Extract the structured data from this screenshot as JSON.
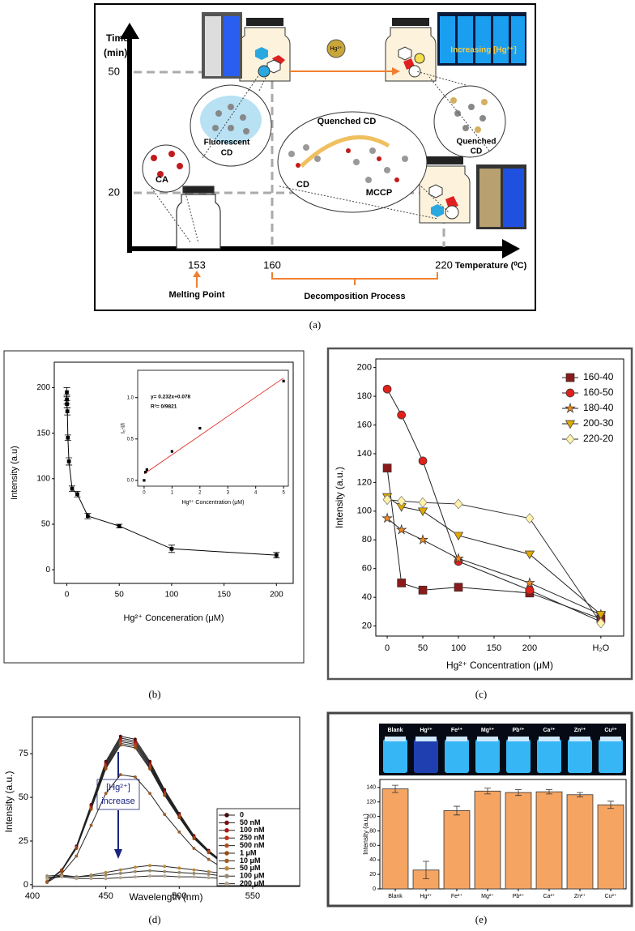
{
  "diagram": {
    "y_axis_title": [
      "Time",
      "(min)"
    ],
    "y_ticks": [
      50,
      20
    ],
    "x_ticks": [
      153,
      160,
      220
    ],
    "x_axis_title": "Temperature (⁰C)",
    "melting_point": "Melting Point",
    "decomposition": "Decomposition Process",
    "ca": "CA",
    "fluorescent_cd": [
      "Fluorescent",
      "CD"
    ],
    "quenched_cd_center": "Quenched CD",
    "cd": "CD",
    "mccp": "MCCP",
    "quenched_cd_right": [
      "Quenched",
      "CD"
    ],
    "hg": "Hg²⁺",
    "increasing": "Increasing [Hg²⁺]"
  },
  "panel_labels": [
    "(a)",
    "(b)",
    "(c)",
    "(d)",
    "(e)"
  ],
  "chart_data": [
    {
      "type": "line",
      "x_label": "Hg²⁺ Conceneration (μM)",
      "y_label": "Intensity (a.u)",
      "x": [
        0,
        0.05,
        0.1,
        0.5,
        1,
        2,
        5,
        10,
        20,
        50,
        100,
        200
      ],
      "values": [
        195,
        187,
        182,
        174,
        145,
        119,
        89,
        83,
        59,
        48,
        23,
        16
      ],
      "errors": [
        5,
        5,
        4,
        4,
        3,
        4,
        3,
        3,
        3,
        2,
        4,
        3
      ],
      "color": "#000000",
      "xlim": [
        -12,
        216
      ],
      "ylim": [
        -15,
        228
      ],
      "xticks": [
        0,
        50,
        100,
        150,
        200
      ],
      "yticks": [
        0,
        50,
        100,
        150,
        200
      ]
    },
    {
      "type": "scatter",
      "x_label": "Hg²⁺ Concentration (μM)",
      "y_label": "I₀-I/I",
      "x": [
        0,
        0.05,
        0.1,
        1,
        2,
        5
      ],
      "values": [
        0,
        0.1,
        0.13,
        0.35,
        0.63,
        1.2
      ],
      "color": "#000000",
      "fit": {
        "x": [
          0,
          5
        ],
        "values": [
          0.078,
          1.238
        ],
        "color": "#e0201b"
      },
      "annotations": [
        "y= 0.232x+0.078",
        "R²= 0/9821"
      ],
      "xlim": [
        -0.23,
        5.17
      ],
      "ylim": [
        -0.07,
        1.33
      ],
      "xticks": [
        0,
        1,
        2,
        3,
        4,
        5
      ],
      "yticks": [
        {
          "value": 0,
          "label": "0.0"
        },
        {
          "value": 0.5,
          "label": "0.5"
        },
        {
          "value": 1,
          "label": "1.0"
        }
      ]
    },
    {
      "type": "line",
      "x_label": "Hg²⁺ Concentration (μM)",
      "y_label": "Intensity (a.u.)",
      "x": [
        0,
        20,
        50,
        100,
        200,
        300
      ],
      "series": [
        {
          "name": "160-40",
          "color": "#8b1a1a",
          "marker": "square",
          "values": [
            130,
            50,
            45,
            47,
            43,
            25
          ]
        },
        {
          "name": "160-50",
          "color": "#e0201b",
          "marker": "circle",
          "values": [
            185,
            167,
            135,
            65,
            45,
            23
          ]
        },
        {
          "name": "180-40",
          "color": "#f28a1e",
          "marker": "star",
          "values": [
            95,
            87,
            80,
            67,
            50,
            28
          ]
        },
        {
          "name": "200-30",
          "color": "#e0a800",
          "marker": "triangle-down",
          "values": [
            110,
            103,
            100,
            83,
            70,
            28
          ]
        },
        {
          "name": "220-20",
          "color": "#fff3a8",
          "marker": "diamond",
          "values": [
            108,
            107,
            106,
            105,
            95,
            22
          ]
        }
      ],
      "legend": "top-right",
      "xlim": [
        -16,
        332
      ],
      "ylim": [
        13,
        206
      ],
      "xticks": [
        0,
        50,
        100,
        150,
        200,
        {
          "value": 300,
          "label": "H₂O"
        }
      ],
      "yticks": [
        20,
        40,
        60,
        80,
        100,
        120,
        140,
        160,
        180,
        200
      ]
    },
    {
      "type": "line",
      "x_label": "Wavelength (nm)",
      "y_label": "Intensity (a.u.)",
      "x": [
        410,
        420,
        430,
        440,
        450,
        460,
        470,
        480,
        490,
        500,
        510,
        520,
        530,
        540,
        550,
        560,
        570,
        580
      ],
      "series": [
        {
          "name": "0",
          "color": "#4a0808",
          "values": [
            1.7,
            8.5,
            22.1,
            45.9,
            70.6,
            85,
            83.3,
            70.6,
            54.4,
            40.8,
            28.1,
            19.6,
            12.8,
            9.4,
            6,
            4.3,
            3,
            2.1
          ]
        },
        {
          "name": "50 nM",
          "color": "#7a0e0e",
          "values": [
            1.7,
            8.4,
            21.8,
            45.4,
            69.7,
            84,
            82.3,
            69.7,
            53.8,
            40.3,
            27.7,
            19.3,
            12.6,
            9.2,
            5.9,
            4.2,
            2.9,
            2.1
          ]
        },
        {
          "name": "100 nM",
          "color": "#b01515",
          "values": [
            1.7,
            8.3,
            21.6,
            44.8,
            68.9,
            83,
            81.3,
            68.9,
            53.1,
            39.8,
            27.4,
            19.1,
            12.5,
            9.1,
            5.8,
            4.2,
            2.9,
            2.1
          ]
        },
        {
          "name": "250 nM",
          "color": "#c0301a",
          "values": [
            1.6,
            8.2,
            21.3,
            44.3,
            68.1,
            82,
            80.4,
            68.1,
            52.5,
            39.4,
            27.1,
            18.9,
            12.3,
            9,
            5.7,
            4.1,
            2.9,
            2.1
          ]
        },
        {
          "name": "500 nM",
          "color": "#b05020",
          "values": [
            1.6,
            8.1,
            21.1,
            43.7,
            67.2,
            81,
            79.4,
            67.2,
            51.8,
            38.9,
            26.7,
            18.6,
            12.2,
            8.9,
            5.7,
            4.1,
            2.8,
            2
          ]
        },
        {
          "name": "1 μM",
          "color": "#9b4a12",
          "values": [
            1.6,
            8,
            20.8,
            43.2,
            66.4,
            80,
            78.4,
            66.4,
            51.2,
            38.4,
            26.4,
            18.4,
            12,
            8.8,
            5.6,
            4,
            2.8,
            2
          ]
        },
        {
          "name": "10 μM",
          "color": "#a0602a",
          "values": [
            1.3,
            6.3,
            16.4,
            34,
            52.3,
            63,
            61.7,
            52.3,
            40.3,
            30.2,
            20.8,
            14.5,
            9.5,
            6.9,
            4.4,
            3.2,
            2.2,
            1.6
          ]
        },
        {
          "name": "50 μM",
          "color": "#c08a3a",
          "values": [
            4,
            5,
            4.5,
            5.5,
            7,
            8.5,
            10,
            11,
            10.5,
            9.5,
            8.5,
            7.5,
            6.5,
            5.5,
            4.5,
            4,
            3.5,
            3
          ]
        },
        {
          "name": "100 μM",
          "color": "#9a8a70",
          "values": [
            5,
            5.5,
            4.5,
            5,
            5.5,
            6.5,
            7.5,
            8,
            7.5,
            7,
            6.5,
            6,
            5,
            4.5,
            4,
            3.5,
            3,
            2.5
          ]
        },
        {
          "name": "200 μM",
          "color": "#b8a890",
          "values": [
            3.5,
            4.5,
            3.5,
            3.5,
            3.5,
            4,
            4.5,
            5,
            5,
            4.5,
            4.5,
            4,
            3.5,
            3.5,
            3,
            3,
            2.5,
            2.5
          ]
        }
      ],
      "annotations": [
        "[Hg²⁺]",
        "increase"
      ],
      "legend": "bottom-right",
      "xlim": [
        400,
        582
      ],
      "ylim": [
        -1,
        96
      ],
      "xticks": [
        400,
        450,
        500,
        550
      ],
      "yticks": [
        0,
        25,
        50,
        75
      ]
    },
    {
      "type": "bar",
      "y_label": "Intensity (a.u.)",
      "categories": [
        "Blank",
        "Hg²⁺",
        "Fe²⁺",
        "Mg²⁺",
        "Pb²⁺",
        "Ca²⁺",
        "Zn²⁺",
        "Cu²⁺"
      ],
      "values": [
        138,
        26,
        108,
        135,
        133,
        134,
        130,
        116
      ],
      "errors": [
        5,
        12,
        6,
        4,
        4,
        3,
        3,
        5
      ],
      "color": "#f5a462",
      "ylim": [
        0,
        151
      ],
      "yticks": [
        0,
        20,
        40,
        60,
        80,
        100,
        120,
        140
      ]
    }
  ]
}
